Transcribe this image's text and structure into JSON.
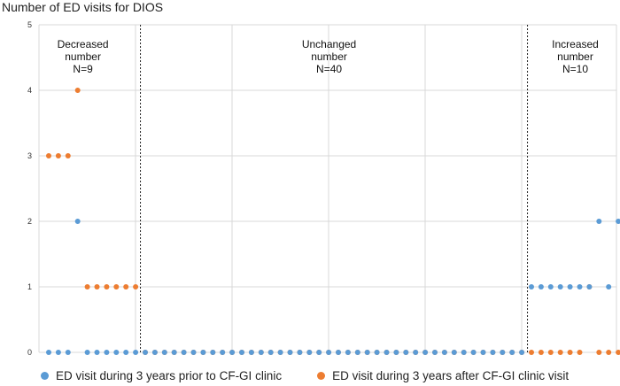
{
  "chart_data": {
    "type": "scatter",
    "title": "Number of ED visits for DIOS",
    "ylim": [
      0,
      5
    ],
    "yticks": [
      "0",
      "1",
      "2",
      "3",
      "4",
      "5"
    ],
    "grid": true,
    "legend_position": "bottom",
    "colors": {
      "before": "#5B9BD5",
      "after": "#ED7D31"
    },
    "dividers_x": [
      9.5,
      49.5
    ],
    "regions": [
      {
        "lines": [
          "Decreased",
          "number",
          "N=9"
        ],
        "x": 4
      },
      {
        "lines": [
          "Unchanged",
          "number",
          "N=40"
        ],
        "x": 29.5
      },
      {
        "lines": [
          "Increased",
          "number",
          "N=10"
        ],
        "x": 55
      }
    ],
    "series": [
      {
        "name": "ED visit during 3 years prior to CF-GI clinic",
        "values": [
          0,
          0,
          0,
          2,
          0,
          0,
          0,
          0,
          0,
          0,
          0,
          0,
          0,
          0,
          0,
          0,
          0,
          0,
          0,
          0,
          0,
          0,
          0,
          0,
          0,
          0,
          0,
          0,
          0,
          0,
          0,
          0,
          0,
          0,
          0,
          0,
          0,
          0,
          0,
          0,
          0,
          0,
          0,
          0,
          0,
          0,
          0,
          0,
          0,
          0,
          1,
          1,
          1,
          1,
          1,
          1,
          1,
          2,
          1,
          2,
          2
        ]
      },
      {
        "name": "ED visit during 3 years after CF-GI clinic visit",
        "values": [
          3,
          3,
          3,
          4,
          1,
          1,
          1,
          1,
          1,
          1,
          0,
          0,
          0,
          0,
          0,
          0,
          0,
          0,
          0,
          0,
          0,
          0,
          0,
          0,
          0,
          0,
          0,
          0,
          0,
          0,
          0,
          0,
          0,
          0,
          0,
          0,
          0,
          0,
          0,
          0,
          0,
          0,
          0,
          0,
          0,
          0,
          0,
          0,
          0,
          0,
          0,
          0,
          0,
          0,
          0,
          0,
          1,
          0,
          0,
          0,
          0
        ]
      }
    ]
  }
}
